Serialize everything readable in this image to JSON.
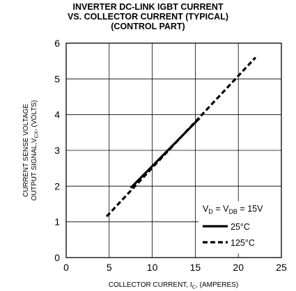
{
  "chart_data": {
    "type": "line",
    "title_lines": [
      "INVERTER DC-LINK IGBT CURRENT",
      "VS. COLLECTOR CURRENT (TYPICAL)",
      "(CONTROL PART)"
    ],
    "xlabel": {
      "prefix": "COLLECTOR CURRENT, I",
      "sub": "C",
      "suffix": ", (AMPERES)"
    },
    "ylabel": {
      "line1": "CURRENT SENSE VOLTAGE",
      "line2_prefix": "OUTPUT SIGNAL,V",
      "line2_sub": "CX",
      "line2_suffix": ", (VOLTS)"
    },
    "xlim": [
      0,
      25
    ],
    "ylim": [
      0,
      6
    ],
    "x_ticks": [
      0,
      5,
      10,
      15,
      20,
      25
    ],
    "y_ticks": [
      0,
      1,
      2,
      3,
      4,
      5,
      6
    ],
    "grid": true,
    "legend_position": "bottom-right",
    "legend_header": {
      "v1": "V",
      "v1_sub": "D",
      "eq1": " = V",
      "v2_sub": "DB",
      "eq2": " = 15V"
    },
    "series": [
      {
        "name": "25°C",
        "style": "solid",
        "color": "#000000",
        "x": [
          7.5,
          15.5
        ],
        "y": [
          1.95,
          3.9
        ]
      },
      {
        "name": "125°C",
        "style": "dashed",
        "color": "#000000",
        "x": [
          4.7,
          22
        ],
        "y": [
          1.15,
          5.6
        ]
      }
    ]
  }
}
